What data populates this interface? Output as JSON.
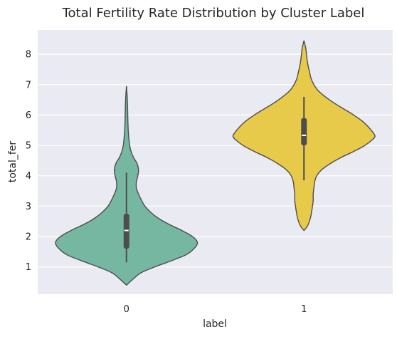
{
  "chart_data": {
    "type": "violin",
    "title": "Total Fertility Rate Distribution by Cluster Label",
    "xlabel": "label",
    "ylabel": "total_fer",
    "categories": [
      "0",
      "1"
    ],
    "y_ticks": [
      1,
      2,
      3,
      4,
      5,
      6,
      7,
      8
    ],
    "ylim": [
      0.1,
      8.8
    ],
    "grid": true,
    "background": "#eaeaf2",
    "series": [
      {
        "category": "0",
        "color": "#76b7a1",
        "range": [
          0.4,
          6.95
        ],
        "whiskers": [
          1.15,
          4.1
        ],
        "quartiles": [
          1.6,
          2.75
        ],
        "median": 2.2,
        "density": [
          [
            0.4,
            0.0
          ],
          [
            0.55,
            0.07
          ],
          [
            0.8,
            0.2
          ],
          [
            1.0,
            0.4
          ],
          [
            1.2,
            0.63
          ],
          [
            1.4,
            0.84
          ],
          [
            1.6,
            0.95
          ],
          [
            1.8,
            1.0
          ],
          [
            2.0,
            0.93
          ],
          [
            2.2,
            0.78
          ],
          [
            2.4,
            0.6
          ],
          [
            2.6,
            0.45
          ],
          [
            2.8,
            0.34
          ],
          [
            3.0,
            0.26
          ],
          [
            3.2,
            0.21
          ],
          [
            3.4,
            0.17
          ],
          [
            3.6,
            0.14
          ],
          [
            3.8,
            0.14
          ],
          [
            4.0,
            0.16
          ],
          [
            4.2,
            0.17
          ],
          [
            4.4,
            0.15
          ],
          [
            4.6,
            0.1
          ],
          [
            4.8,
            0.065
          ],
          [
            5.0,
            0.045
          ],
          [
            5.2,
            0.035
          ],
          [
            5.5,
            0.025
          ],
          [
            5.8,
            0.02
          ],
          [
            6.0,
            0.018
          ],
          [
            6.3,
            0.015
          ],
          [
            6.6,
            0.01
          ],
          [
            6.95,
            0.0
          ]
        ]
      },
      {
        "category": "1",
        "color": "#e8ca4b",
        "range": [
          2.2,
          8.45
        ],
        "whiskers": [
          3.85,
          6.6
        ],
        "quartiles": [
          5.0,
          5.9
        ],
        "median": 5.33,
        "density": [
          [
            2.2,
            0.0
          ],
          [
            2.35,
            0.05
          ],
          [
            2.6,
            0.09
          ],
          [
            3.0,
            0.12
          ],
          [
            3.2,
            0.13
          ],
          [
            3.4,
            0.13
          ],
          [
            3.6,
            0.14
          ],
          [
            3.8,
            0.15
          ],
          [
            4.0,
            0.18
          ],
          [
            4.2,
            0.25
          ],
          [
            4.4,
            0.37
          ],
          [
            4.6,
            0.52
          ],
          [
            4.8,
            0.7
          ],
          [
            5.0,
            0.86
          ],
          [
            5.2,
            0.97
          ],
          [
            5.3,
            1.0
          ],
          [
            5.4,
            0.98
          ],
          [
            5.6,
            0.91
          ],
          [
            5.8,
            0.82
          ],
          [
            6.0,
            0.7
          ],
          [
            6.2,
            0.56
          ],
          [
            6.4,
            0.42
          ],
          [
            6.6,
            0.3
          ],
          [
            6.8,
            0.2
          ],
          [
            7.0,
            0.14
          ],
          [
            7.2,
            0.1
          ],
          [
            7.4,
            0.08
          ],
          [
            7.6,
            0.06
          ],
          [
            7.8,
            0.045
          ],
          [
            8.0,
            0.035
          ],
          [
            8.2,
            0.025
          ],
          [
            8.45,
            0.0
          ]
        ]
      }
    ]
  }
}
